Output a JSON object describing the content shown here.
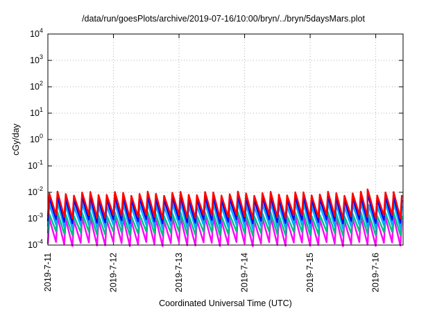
{
  "chart_data": {
    "type": "line",
    "title": "/data/run/goesPlots/archive/2019-07-16/10:00/bryn/../bryn/5daysMars.plot",
    "xlabel": "Coordinated Universal Time (UTC)",
    "ylabel": "cGy/day",
    "yscale": "log",
    "xlim": [
      "2019-07-11T00:00",
      "2019-07-16T10:00"
    ],
    "ylim": [
      0.0001,
      10000
    ],
    "x_ticks": [
      "2019-7-11",
      "2019-7-12",
      "2019-7-13",
      "2019-7-14",
      "2019-7-15",
      "2019-7-16"
    ],
    "y_ticks": [
      {
        "base": "10",
        "exp": "-4"
      },
      {
        "base": "10",
        "exp": "-3"
      },
      {
        "base": "10",
        "exp": "-2"
      },
      {
        "base": "10",
        "exp": "-1"
      },
      {
        "base": "10",
        "exp": "0"
      },
      {
        "base": "10",
        "exp": "1"
      },
      {
        "base": "10",
        "exp": "2"
      },
      {
        "base": "10",
        "exp": "3"
      },
      {
        "base": "10",
        "exp": "4"
      }
    ],
    "grid": true,
    "series": [
      {
        "color": "#ff0000",
        "peak": 0.009,
        "trough": 0.0012,
        "spike": [
          {
            "x": "2019-07-15T21:00",
            "y": 0.013
          }
        ]
      },
      {
        "color": "#0000ff",
        "peak": 0.006,
        "trough": 0.0008,
        "spike": [
          {
            "x": "2019-07-15T21:00",
            "y": 0.008
          }
        ]
      },
      {
        "color": "#00aaff",
        "peak": 0.0035,
        "trough": 0.0005
      },
      {
        "color": "#00c080",
        "peak": 0.0015,
        "trough": 0.00028
      },
      {
        "color": "#ff00ff",
        "peak": 0.001,
        "trough": 0.00011
      }
    ],
    "cycle_hours": 3,
    "notes_visible": "sawtooth waveform repeating roughly every 3 hours across all series"
  }
}
